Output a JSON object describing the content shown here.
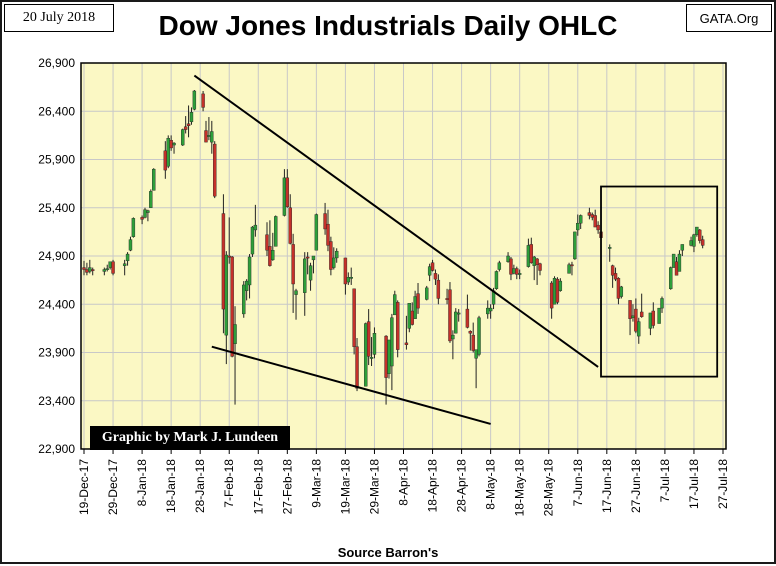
{
  "header": {
    "date_label": "20 July 2018",
    "source_label": "GATA.Org",
    "title": "Dow Jones Industrials Daily OHLC"
  },
  "credit": "Graphic by Mark J. Lundeen",
  "x_caption": "Source Barron's",
  "colors": {
    "plot_bg": "#fbf8c4",
    "up_candle": "#2e9e3a",
    "down_candle": "#c4312a",
    "grid": "#c8c8c8"
  },
  "chart_data": {
    "type": "candlestick",
    "title": "Dow Jones Industrials Daily OHLC",
    "xlabel": "Source Barron's",
    "ylabel": "",
    "ylim": [
      22900,
      26900
    ],
    "y_ticks": [
      "22,900",
      "23,400",
      "23,900",
      "24,400",
      "24,900",
      "25,400",
      "25,900",
      "26,400",
      "26,900"
    ],
    "x_ticks": [
      "19-Dec-17",
      "29-Dec-17",
      "8-Jan-18",
      "18-Jan-18",
      "28-Jan-18",
      "7-Feb-18",
      "17-Feb-18",
      "27-Feb-18",
      "9-Mar-18",
      "19-Mar-18",
      "29-Mar-18",
      "8-Apr-18",
      "18-Apr-18",
      "28-Apr-18",
      "8-May-18",
      "18-May-18",
      "28-May-18",
      "7-Jun-18",
      "17-Jun-18",
      "27-Jun-18",
      "7-Jul-18",
      "17-Jul-18",
      "27-Jul-18"
    ],
    "grid": true,
    "candles": [
      {
        "d": "2017-12-19",
        "o": 24780,
        "h": 24850,
        "l": 24700,
        "c": 24760
      },
      {
        "d": "2017-12-20",
        "o": 24760,
        "h": 24830,
        "l": 24700,
        "c": 24730
      },
      {
        "d": "2017-12-21",
        "o": 24740,
        "h": 24860,
        "l": 24720,
        "c": 24780
      },
      {
        "d": "2017-12-22",
        "o": 24760,
        "h": 24780,
        "l": 24700,
        "c": 24750
      },
      {
        "d": "2017-12-26",
        "o": 24740,
        "h": 24780,
        "l": 24700,
        "c": 24760
      },
      {
        "d": "2017-12-27",
        "o": 24760,
        "h": 24810,
        "l": 24740,
        "c": 24770
      },
      {
        "d": "2017-12-28",
        "o": 24780,
        "h": 24840,
        "l": 24760,
        "c": 24840
      },
      {
        "d": "2017-12-29",
        "o": 24840,
        "h": 24860,
        "l": 24700,
        "c": 24720
      },
      {
        "d": "2018-01-02",
        "o": 24800,
        "h": 24860,
        "l": 24700,
        "c": 24820
      },
      {
        "d": "2018-01-03",
        "o": 24850,
        "h": 24940,
        "l": 24800,
        "c": 24920
      },
      {
        "d": "2018-01-04",
        "o": 24960,
        "h": 25100,
        "l": 24950,
        "c": 25070
      },
      {
        "d": "2018-01-05",
        "o": 25100,
        "h": 25300,
        "l": 25090,
        "c": 25290
      },
      {
        "d": "2018-01-08",
        "o": 25300,
        "h": 25320,
        "l": 25230,
        "c": 25280
      },
      {
        "d": "2018-01-09",
        "o": 25300,
        "h": 25400,
        "l": 25290,
        "c": 25380
      },
      {
        "d": "2018-01-10",
        "o": 25350,
        "h": 25380,
        "l": 25260,
        "c": 25370
      },
      {
        "d": "2018-01-11",
        "o": 25400,
        "h": 25590,
        "l": 25400,
        "c": 25570
      },
      {
        "d": "2018-01-12",
        "o": 25580,
        "h": 25810,
        "l": 25580,
        "c": 25800
      },
      {
        "d": "2018-01-16",
        "o": 25990,
        "h": 26090,
        "l": 25700,
        "c": 25790
      },
      {
        "d": "2018-01-17",
        "o": 25830,
        "h": 26150,
        "l": 25810,
        "c": 26120
      },
      {
        "d": "2018-01-18",
        "o": 26100,
        "h": 26150,
        "l": 25990,
        "c": 26020
      },
      {
        "d": "2018-01-19",
        "o": 26050,
        "h": 26080,
        "l": 25960,
        "c": 26070
      },
      {
        "d": "2018-01-22",
        "o": 26050,
        "h": 26220,
        "l": 26040,
        "c": 26210
      },
      {
        "d": "2018-01-23",
        "o": 26240,
        "h": 26350,
        "l": 26170,
        "c": 26210
      },
      {
        "d": "2018-01-24",
        "o": 26270,
        "h": 26460,
        "l": 26130,
        "c": 26250
      },
      {
        "d": "2018-01-25",
        "o": 26290,
        "h": 26440,
        "l": 26260,
        "c": 26390
      },
      {
        "d": "2018-01-26",
        "o": 26420,
        "h": 26620,
        "l": 26410,
        "c": 26610
      },
      {
        "d": "2018-01-29",
        "o": 26580,
        "h": 26610,
        "l": 26400,
        "c": 26440
      },
      {
        "d": "2018-01-30",
        "o": 26200,
        "h": 26300,
        "l": 26080,
        "c": 26080
      },
      {
        "d": "2018-01-31",
        "o": 26150,
        "h": 26340,
        "l": 26100,
        "c": 26150
      },
      {
        "d": "2018-02-01",
        "o": 26080,
        "h": 26300,
        "l": 25960,
        "c": 26190
      },
      {
        "d": "2018-02-02",
        "o": 26060,
        "h": 26090,
        "l": 25500,
        "c": 25520
      },
      {
        "d": "2018-02-05",
        "o": 25340,
        "h": 25540,
        "l": 24100,
        "c": 24350
      },
      {
        "d": "2018-02-06",
        "o": 24080,
        "h": 24950,
        "l": 23780,
        "c": 24910
      },
      {
        "d": "2018-02-07",
        "o": 24900,
        "h": 25300,
        "l": 24820,
        "c": 24890
      },
      {
        "d": "2018-02-08",
        "o": 24890,
        "h": 24900,
        "l": 23850,
        "c": 23860
      },
      {
        "d": "2018-02-09",
        "o": 23990,
        "h": 24380,
        "l": 23360,
        "c": 24190
      },
      {
        "d": "2018-02-12",
        "o": 24300,
        "h": 24640,
        "l": 24260,
        "c": 24600
      },
      {
        "d": "2018-02-13",
        "o": 24540,
        "h": 24660,
        "l": 24440,
        "c": 24640
      },
      {
        "d": "2018-02-14",
        "o": 24600,
        "h": 24920,
        "l": 24460,
        "c": 24890
      },
      {
        "d": "2018-02-15",
        "o": 24920,
        "h": 25210,
        "l": 24890,
        "c": 25200
      },
      {
        "d": "2018-02-16",
        "o": 25170,
        "h": 25430,
        "l": 25100,
        "c": 25220
      },
      {
        "d": "2018-02-20",
        "o": 25120,
        "h": 25250,
        "l": 24900,
        "c": 24960
      },
      {
        "d": "2018-02-21",
        "o": 25000,
        "h": 25270,
        "l": 24790,
        "c": 24800
      },
      {
        "d": "2018-02-22",
        "o": 24860,
        "h": 25140,
        "l": 24850,
        "c": 24960
      },
      {
        "d": "2018-02-23",
        "o": 25000,
        "h": 25320,
        "l": 25000,
        "c": 25310
      },
      {
        "d": "2018-02-26",
        "o": 25320,
        "h": 25800,
        "l": 25310,
        "c": 25710
      },
      {
        "d": "2018-02-27",
        "o": 25710,
        "h": 25800,
        "l": 25400,
        "c": 25410
      },
      {
        "d": "2018-02-28",
        "o": 25400,
        "h": 25540,
        "l": 25020,
        "c": 25030
      },
      {
        "d": "2018-03-01",
        "o": 25020,
        "h": 25130,
        "l": 24310,
        "c": 24610
      },
      {
        "d": "2018-03-02",
        "o": 24500,
        "h": 24560,
        "l": 24240,
        "c": 24540
      },
      {
        "d": "2018-03-05",
        "o": 24520,
        "h": 24940,
        "l": 24280,
        "c": 24870
      },
      {
        "d": "2018-03-06",
        "o": 24890,
        "h": 24940,
        "l": 24710,
        "c": 24880
      },
      {
        "d": "2018-03-07",
        "o": 24650,
        "h": 24830,
        "l": 24540,
        "c": 24800
      },
      {
        "d": "2018-03-08",
        "o": 24860,
        "h": 24900,
        "l": 24720,
        "c": 24900
      },
      {
        "d": "2018-03-09",
        "o": 24960,
        "h": 25340,
        "l": 24960,
        "c": 25330
      },
      {
        "d": "2018-03-12",
        "o": 25340,
        "h": 25450,
        "l": 25120,
        "c": 25180
      },
      {
        "d": "2018-03-13",
        "o": 25230,
        "h": 25380,
        "l": 24950,
        "c": 25010
      },
      {
        "d": "2018-03-14",
        "o": 25050,
        "h": 25100,
        "l": 24700,
        "c": 24760
      },
      {
        "d": "2018-03-15",
        "o": 24780,
        "h": 24990,
        "l": 24760,
        "c": 24880
      },
      {
        "d": "2018-03-16",
        "o": 24880,
        "h": 24980,
        "l": 24830,
        "c": 24950
      },
      {
        "d": "2018-03-19",
        "o": 24880,
        "h": 24880,
        "l": 24500,
        "c": 24610
      },
      {
        "d": "2018-03-20",
        "o": 24630,
        "h": 24730,
        "l": 24600,
        "c": 24680
      },
      {
        "d": "2018-03-21",
        "o": 24680,
        "h": 24780,
        "l": 24600,
        "c": 24680
      },
      {
        "d": "2018-03-22",
        "o": 24560,
        "h": 24560,
        "l": 23880,
        "c": 23960
      },
      {
        "d": "2018-03-23",
        "o": 23960,
        "h": 24050,
        "l": 23500,
        "c": 23530
      },
      {
        "d": "2018-03-26",
        "o": 23550,
        "h": 24210,
        "l": 23550,
        "c": 24200
      },
      {
        "d": "2018-03-27",
        "o": 24220,
        "h": 24350,
        "l": 23770,
        "c": 23860
      },
      {
        "d": "2018-03-28",
        "o": 23850,
        "h": 24060,
        "l": 23760,
        "c": 23850
      },
      {
        "d": "2018-03-29",
        "o": 23880,
        "h": 24160,
        "l": 23840,
        "c": 24100
      },
      {
        "d": "2018-04-02",
        "o": 24070,
        "h": 24080,
        "l": 23360,
        "c": 23640
      },
      {
        "d": "2018-04-03",
        "o": 23680,
        "h": 24030,
        "l": 23630,
        "c": 24030
      },
      {
        "d": "2018-04-04",
        "o": 23760,
        "h": 24300,
        "l": 23510,
        "c": 24260
      },
      {
        "d": "2018-04-05",
        "o": 24290,
        "h": 24540,
        "l": 24290,
        "c": 24500
      },
      {
        "d": "2018-04-06",
        "o": 24420,
        "h": 24440,
        "l": 23850,
        "c": 23930
      },
      {
        "d": "2018-04-09",
        "o": 24000,
        "h": 24280,
        "l": 23930,
        "c": 23980
      },
      {
        "d": "2018-04-10",
        "o": 24150,
        "h": 24400,
        "l": 24110,
        "c": 24410
      },
      {
        "d": "2018-04-11",
        "o": 24330,
        "h": 24420,
        "l": 24180,
        "c": 24190
      },
      {
        "d": "2018-04-12",
        "o": 24250,
        "h": 24540,
        "l": 24250,
        "c": 24480
      },
      {
        "d": "2018-04-13",
        "o": 24510,
        "h": 24620,
        "l": 24300,
        "c": 24360
      },
      {
        "d": "2018-04-16",
        "o": 24450,
        "h": 24590,
        "l": 24440,
        "c": 24570
      },
      {
        "d": "2018-04-17",
        "o": 24700,
        "h": 24820,
        "l": 24640,
        "c": 24790
      },
      {
        "d": "2018-04-18",
        "o": 24830,
        "h": 24860,
        "l": 24740,
        "c": 24750
      },
      {
        "d": "2018-04-19",
        "o": 24720,
        "h": 24760,
        "l": 24600,
        "c": 24660
      },
      {
        "d": "2018-04-20",
        "o": 24650,
        "h": 24710,
        "l": 24400,
        "c": 24460
      },
      {
        "d": "2018-04-23",
        "o": 24460,
        "h": 24560,
        "l": 24400,
        "c": 24450
      },
      {
        "d": "2018-04-24",
        "o": 24550,
        "h": 24630,
        "l": 24000,
        "c": 24020
      },
      {
        "d": "2018-04-25",
        "o": 24040,
        "h": 24130,
        "l": 23830,
        "c": 24080
      },
      {
        "d": "2018-04-26",
        "o": 24100,
        "h": 24360,
        "l": 24100,
        "c": 24320
      },
      {
        "d": "2018-04-27",
        "o": 24300,
        "h": 24350,
        "l": 24220,
        "c": 24310
      },
      {
        "d": "2018-04-30",
        "o": 24350,
        "h": 24500,
        "l": 24150,
        "c": 24160
      },
      {
        "d": "2018-05-01",
        "o": 24120,
        "h": 24130,
        "l": 23920,
        "c": 24100
      },
      {
        "d": "2018-05-02",
        "o": 24080,
        "h": 24210,
        "l": 23900,
        "c": 23920
      },
      {
        "d": "2018-05-03",
        "o": 23840,
        "h": 23900,
        "l": 23530,
        "c": 23930
      },
      {
        "d": "2018-05-04",
        "o": 23880,
        "h": 24280,
        "l": 23860,
        "c": 24260
      },
      {
        "d": "2018-05-07",
        "o": 24300,
        "h": 24440,
        "l": 24250,
        "c": 24360
      },
      {
        "d": "2018-05-08",
        "o": 24330,
        "h": 24400,
        "l": 24250,
        "c": 24360
      },
      {
        "d": "2018-05-09",
        "o": 24400,
        "h": 24570,
        "l": 24350,
        "c": 24540
      },
      {
        "d": "2018-05-10",
        "o": 24560,
        "h": 24750,
        "l": 24550,
        "c": 24740
      },
      {
        "d": "2018-05-11",
        "o": 24760,
        "h": 24850,
        "l": 24740,
        "c": 24830
      },
      {
        "d": "2018-05-14",
        "o": 24840,
        "h": 24940,
        "l": 24830,
        "c": 24900
      },
      {
        "d": "2018-05-15",
        "o": 24870,
        "h": 24890,
        "l": 24650,
        "c": 24710
      },
      {
        "d": "2018-05-16",
        "o": 24720,
        "h": 24810,
        "l": 24710,
        "c": 24770
      },
      {
        "d": "2018-05-17",
        "o": 24770,
        "h": 24790,
        "l": 24660,
        "c": 24710
      },
      {
        "d": "2018-05-18",
        "o": 24720,
        "h": 24760,
        "l": 24660,
        "c": 24720
      },
      {
        "d": "2018-05-21",
        "o": 24790,
        "h": 25080,
        "l": 24780,
        "c": 25010
      },
      {
        "d": "2018-05-22",
        "o": 25020,
        "h": 25090,
        "l": 24820,
        "c": 24830
      },
      {
        "d": "2018-05-23",
        "o": 24800,
        "h": 24900,
        "l": 24650,
        "c": 24890
      },
      {
        "d": "2018-05-24",
        "o": 24870,
        "h": 24880,
        "l": 24600,
        "c": 24810
      },
      {
        "d": "2018-05-25",
        "o": 24820,
        "h": 24830,
        "l": 24700,
        "c": 24750
      },
      {
        "d": "2018-05-29",
        "o": 24620,
        "h": 24640,
        "l": 24250,
        "c": 24360
      },
      {
        "d": "2018-05-30",
        "o": 24400,
        "h": 24690,
        "l": 24400,
        "c": 24670
      },
      {
        "d": "2018-05-31",
        "o": 24660,
        "h": 24680,
        "l": 24400,
        "c": 24420
      },
      {
        "d": "2018-06-01",
        "o": 24540,
        "h": 24670,
        "l": 24530,
        "c": 24640
      },
      {
        "d": "2018-06-04",
        "o": 24720,
        "h": 24830,
        "l": 24720,
        "c": 24810
      },
      {
        "d": "2018-06-05",
        "o": 24810,
        "h": 24840,
        "l": 24700,
        "c": 24800
      },
      {
        "d": "2018-06-06",
        "o": 24870,
        "h": 25150,
        "l": 24860,
        "c": 25150
      },
      {
        "d": "2018-06-07",
        "o": 25170,
        "h": 25330,
        "l": 25110,
        "c": 25240
      },
      {
        "d": "2018-06-08",
        "o": 25240,
        "h": 25330,
        "l": 25180,
        "c": 25320
      },
      {
        "d": "2018-06-11",
        "o": 25350,
        "h": 25400,
        "l": 25280,
        "c": 25320
      },
      {
        "d": "2018-06-12",
        "o": 25330,
        "h": 25350,
        "l": 25270,
        "c": 25300
      },
      {
        "d": "2018-06-13",
        "o": 25320,
        "h": 25380,
        "l": 25200,
        "c": 25200
      },
      {
        "d": "2018-06-14",
        "o": 25220,
        "h": 25260,
        "l": 25130,
        "c": 25170
      },
      {
        "d": "2018-06-15",
        "o": 25150,
        "h": 25170,
        "l": 24930,
        "c": 25090
      },
      {
        "d": "2018-06-18",
        "o": 24990,
        "h": 25020,
        "l": 24840,
        "c": 24990
      },
      {
        "d": "2018-06-19",
        "o": 24800,
        "h": 24810,
        "l": 24570,
        "c": 24700
      },
      {
        "d": "2018-06-20",
        "o": 24720,
        "h": 24780,
        "l": 24640,
        "c": 24660
      },
      {
        "d": "2018-06-21",
        "o": 24670,
        "h": 24680,
        "l": 24400,
        "c": 24460
      },
      {
        "d": "2018-06-22",
        "o": 24480,
        "h": 24590,
        "l": 24460,
        "c": 24580
      },
      {
        "d": "2018-06-25",
        "o": 24440,
        "h": 24440,
        "l": 24080,
        "c": 24250
      },
      {
        "d": "2018-06-26",
        "o": 24260,
        "h": 24400,
        "l": 24220,
        "c": 24280
      },
      {
        "d": "2018-06-27",
        "o": 24350,
        "h": 24460,
        "l": 24100,
        "c": 24120
      },
      {
        "d": "2018-06-28",
        "o": 24070,
        "h": 24260,
        "l": 23990,
        "c": 24220
      },
      {
        "d": "2018-06-29",
        "o": 24320,
        "h": 24510,
        "l": 24260,
        "c": 24270
      },
      {
        "d": "2018-07-02",
        "o": 24150,
        "h": 24310,
        "l": 24080,
        "c": 24310
      },
      {
        "d": "2018-07-03",
        "o": 24330,
        "h": 24420,
        "l": 24150,
        "c": 24180
      },
      {
        "d": "2018-07-05",
        "o": 24200,
        "h": 24360,
        "l": 24200,
        "c": 24360
      },
      {
        "d": "2018-07-06",
        "o": 24360,
        "h": 24480,
        "l": 24310,
        "c": 24460
      },
      {
        "d": "2018-07-09",
        "o": 24560,
        "h": 24790,
        "l": 24550,
        "c": 24780
      },
      {
        "d": "2018-07-10",
        "o": 24780,
        "h": 24920,
        "l": 24780,
        "c": 24920
      },
      {
        "d": "2018-07-11",
        "o": 24840,
        "h": 24890,
        "l": 24700,
        "c": 24700
      },
      {
        "d": "2018-07-12",
        "o": 24740,
        "h": 24960,
        "l": 24740,
        "c": 24920
      },
      {
        "d": "2018-07-13",
        "o": 24960,
        "h": 25020,
        "l": 24900,
        "c": 25020
      },
      {
        "d": "2018-07-16",
        "o": 25010,
        "h": 25100,
        "l": 25000,
        "c": 25060
      },
      {
        "d": "2018-07-17",
        "o": 25000,
        "h": 25130,
        "l": 24940,
        "c": 25120
      },
      {
        "d": "2018-07-18",
        "o": 25120,
        "h": 25200,
        "l": 25100,
        "c": 25200
      },
      {
        "d": "2018-07-19",
        "o": 25170,
        "h": 25180,
        "l": 25030,
        "c": 25060
      },
      {
        "d": "2018-07-20",
        "o": 25070,
        "h": 25110,
        "l": 24980,
        "c": 25010
      }
    ],
    "trend_lines": [
      {
        "from": {
          "d": "2018-01-26",
          "v": 26770
        },
        "to": {
          "d": "2018-06-14",
          "v": 23750
        }
      },
      {
        "from": {
          "d": "2018-02-01",
          "v": 23960
        },
        "to": {
          "d": "2018-05-08",
          "v": 23160
        }
      }
    ],
    "highlight_box": {
      "from": {
        "d": "2018-06-15",
        "v": 25620
      },
      "to": {
        "d": "2018-07-25",
        "v": 23650
      }
    }
  }
}
